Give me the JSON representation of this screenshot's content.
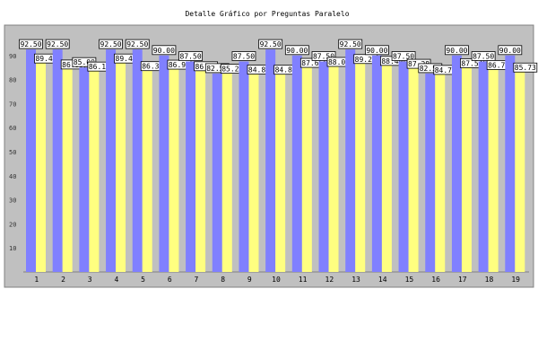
{
  "chart_data": {
    "type": "bar",
    "title": "Detalle Gráfico por Preguntas Paralelo",
    "xlabel": "",
    "ylabel": "",
    "ylim": [
      0,
      100
    ],
    "yticks": [
      10,
      20,
      30,
      40,
      50,
      60,
      70,
      80,
      90
    ],
    "grid": false,
    "categories": [
      "1",
      "2",
      "3",
      "4",
      "5",
      "6",
      "7",
      "8",
      "9",
      "10",
      "11",
      "12",
      "13",
      "14",
      "15",
      "16",
      "17",
      "18",
      "19"
    ],
    "series": [
      {
        "values": [
          92.5,
          92.5,
          85.0,
          92.5,
          92.5,
          90.0,
          87.5,
          82.5,
          87.5,
          92.5,
          90.0,
          87.5,
          92.5,
          90.0,
          87.5,
          82.5,
          90.0,
          87.5,
          90.0
        ],
        "color": "#8080ff"
      },
      {
        "values": [
          89.48,
          86.99,
          86.13,
          89.48,
          86.31,
          86.92,
          86.26,
          85.22,
          84.88,
          84.81,
          87.66,
          88.06,
          89.27,
          88.49,
          87.28,
          84.74,
          87.54,
          86.78,
          85.73
        ],
        "color": "#ffff80"
      }
    ],
    "labels": [
      [
        "92.50",
        "89.48"
      ],
      [
        "92.50",
        "86.99"
      ],
      [
        "85.00",
        "86.13"
      ],
      [
        "92.50",
        "89.48"
      ],
      [
        "92.50",
        "86.31"
      ],
      [
        "90.00",
        "86.92"
      ],
      [
        "87.50",
        "86.26"
      ],
      [
        "82.50",
        "85.22"
      ],
      [
        "87.50",
        "84.88"
      ],
      [
        "92.50",
        "84.81"
      ],
      [
        "90.00",
        "87.66"
      ],
      [
        "87.50",
        "88.06"
      ],
      [
        "92.50",
        "89.27"
      ],
      [
        "90.00",
        "88.49"
      ],
      [
        "87.50",
        "87.28"
      ],
      [
        "82.50",
        "84.74"
      ],
      [
        "90.00",
        "87.54"
      ],
      [
        "87.50",
        "86.78"
      ],
      [
        "90.00",
        "85.73"
      ]
    ],
    "highlight_tick_color": "#ffffff",
    "highlighted_ticks": [
      "13",
      "14",
      "15",
      "16",
      "17",
      "18",
      "19"
    ]
  }
}
